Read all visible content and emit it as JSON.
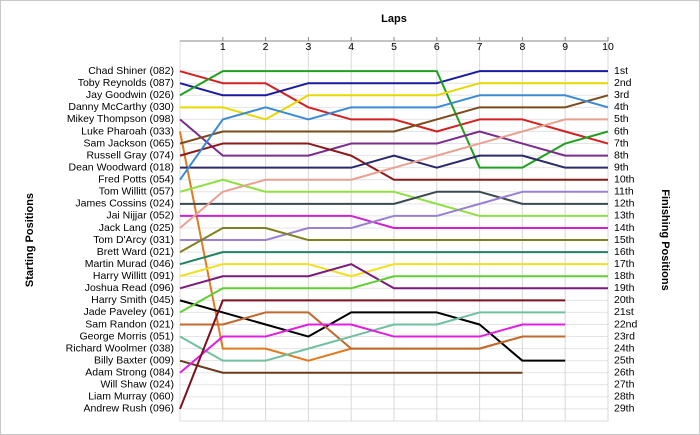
{
  "chart_data": {
    "type": "line",
    "title": "Laps",
    "y_label": "Starting Positions",
    "y2_label": "Finishing Positions",
    "x": [
      0,
      1,
      2,
      3,
      4,
      5,
      6,
      7,
      8,
      9,
      10
    ],
    "xlim": [
      0,
      10
    ],
    "xticks": [
      1,
      2,
      3,
      4,
      5,
      6,
      7,
      8,
      9,
      10
    ],
    "ylim": [
      30,
      -1.5
    ],
    "y2lim": [
      30,
      -1.5
    ],
    "y2ticks": [
      {
        "value": 1,
        "label": "1st"
      },
      {
        "value": 2,
        "label": "2nd"
      },
      {
        "value": 3,
        "label": "3rd"
      },
      {
        "value": 4,
        "label": "4th"
      },
      {
        "value": 5,
        "label": "5th"
      },
      {
        "value": 6,
        "label": "6th"
      },
      {
        "value": 7,
        "label": "7th"
      },
      {
        "value": 8,
        "label": "8th"
      },
      {
        "value": 9,
        "label": "9th"
      },
      {
        "value": 10,
        "label": "10th"
      },
      {
        "value": 11,
        "label": "11th"
      },
      {
        "value": 12,
        "label": "12th"
      },
      {
        "value": 13,
        "label": "13th"
      },
      {
        "value": 14,
        "label": "14th"
      },
      {
        "value": 15,
        "label": "15th"
      },
      {
        "value": 16,
        "label": "16th"
      },
      {
        "value": 17,
        "label": "17th"
      },
      {
        "value": 18,
        "label": "18th"
      },
      {
        "value": 19,
        "label": "19th"
      },
      {
        "value": 20,
        "label": "20th"
      },
      {
        "value": 21,
        "label": "21st"
      },
      {
        "value": 22,
        "label": "22nd"
      },
      {
        "value": 23,
        "label": "23rd"
      },
      {
        "value": 24,
        "label": "24th"
      },
      {
        "value": 25,
        "label": "25th"
      },
      {
        "value": 26,
        "label": "26th"
      },
      {
        "value": 27,
        "label": "27th"
      },
      {
        "value": 28,
        "label": "28th"
      },
      {
        "value": 29,
        "label": "29th"
      }
    ],
    "grid": true,
    "series": [
      {
        "name": "Chad Shiner (082)",
        "color": "#d42020",
        "values": [
          1,
          2,
          2,
          4,
          5,
          5,
          6,
          5,
          5,
          6,
          7
        ]
      },
      {
        "name": "Toby Reynolds (087)",
        "color": "#1a1aa0",
        "values": [
          2,
          3,
          3,
          2,
          2,
          2,
          2,
          1,
          1,
          1,
          1
        ]
      },
      {
        "name": "Jay Goodwin (026)",
        "color": "#20a020",
        "values": [
          3,
          1,
          1,
          1,
          1,
          1,
          1,
          9,
          9,
          7,
          6
        ]
      },
      {
        "name": "Danny McCarthy (030)",
        "color": "#e8d800",
        "values": [
          4,
          4,
          5,
          3,
          3,
          3,
          3,
          2,
          2,
          2,
          2
        ]
      },
      {
        "name": "Mikey Thompson (098)",
        "color": "#7b2d8b",
        "values": [
          5,
          8,
          8,
          8,
          7,
          7,
          7,
          6,
          7,
          8,
          8
        ]
      },
      {
        "name": "Luke Pharoah (033)",
        "color": "#e07a20",
        "values": [
          6,
          24,
          24,
          25,
          24,
          24,
          24,
          24,
          23,
          23,
          null
        ]
      },
      {
        "name": "Sam Jackson (065)",
        "color": "#7a4a1a",
        "values": [
          7,
          6,
          6,
          6,
          6,
          6,
          5,
          4,
          4,
          4,
          3
        ]
      },
      {
        "name": "Russell Gray (074)",
        "color": "#8b1a1a",
        "values": [
          8,
          7,
          7,
          7,
          8,
          10,
          10,
          10,
          10,
          10,
          10
        ]
      },
      {
        "name": "Dean Woodward (018)",
        "color": "#2a2a6a",
        "values": [
          9,
          9,
          9,
          9,
          9,
          8,
          9,
          8,
          8,
          9,
          9
        ]
      },
      {
        "name": "Fred Potts (054)",
        "color": "#3a8ad6",
        "values": [
          10,
          5,
          4,
          5,
          4,
          4,
          4,
          3,
          3,
          3,
          4
        ]
      },
      {
        "name": "Tom Willitt (057)",
        "color": "#90e040",
        "values": [
          11,
          10,
          11,
          11,
          11,
          11,
          12,
          13,
          13,
          13,
          13
        ]
      },
      {
        "name": "James Cossins (024)",
        "color": "#3a4a50",
        "values": [
          12,
          12,
          12,
          12,
          12,
          12,
          11,
          11,
          12,
          12,
          12
        ]
      },
      {
        "name": "Jai Nijjar (052)",
        "color": "#d020d0",
        "values": [
          13,
          13,
          13,
          13,
          13,
          14,
          14,
          14,
          14,
          14,
          14
        ]
      },
      {
        "name": "Jack Lang (025)",
        "color": "#e8a090",
        "values": [
          14,
          11,
          10,
          10,
          10,
          9,
          8,
          7,
          6,
          5,
          5
        ]
      },
      {
        "name": "Tom D'Arcy (031)",
        "color": "#9a80d0",
        "values": [
          15,
          15,
          15,
          14,
          14,
          13,
          13,
          12,
          11,
          11,
          11
        ]
      },
      {
        "name": "Brett Ward (021)",
        "color": "#808020",
        "values": [
          16,
          14,
          14,
          15,
          15,
          15,
          15,
          15,
          15,
          15,
          15
        ]
      },
      {
        "name": "Martin Murad (046)",
        "color": "#208060",
        "values": [
          17,
          16,
          16,
          16,
          16,
          16,
          16,
          16,
          16,
          16,
          16
        ]
      },
      {
        "name": "Harry Willitt (091)",
        "color": "#f0e020",
        "values": [
          18,
          17,
          17,
          17,
          18,
          17,
          17,
          17,
          17,
          17,
          17
        ]
      },
      {
        "name": "Joshua Read (096)",
        "color": "#7a1a7a",
        "values": [
          19,
          18,
          18,
          18,
          17,
          19,
          19,
          19,
          19,
          19,
          19
        ]
      },
      {
        "name": "Harry Smith (045)",
        "color": "#000000",
        "values": [
          20,
          21,
          22,
          23,
          21,
          21,
          21,
          22,
          25,
          25,
          null
        ]
      },
      {
        "name": "Jade Paveley (061)",
        "color": "#60d030",
        "values": [
          21,
          19,
          19,
          19,
          19,
          18,
          18,
          18,
          18,
          18,
          18
        ]
      },
      {
        "name": "Sam Randon (021)",
        "color": "#c06a30",
        "values": [
          22,
          22,
          21,
          21,
          24,
          24,
          24,
          24,
          23,
          23,
          null
        ]
      },
      {
        "name": "George Morris (051)",
        "color": "#70c0a0",
        "values": [
          23,
          25,
          25,
          24,
          23,
          22,
          22,
          21,
          21,
          21,
          null
        ]
      },
      {
        "name": "Richard Woolmer (038)",
        "color": "#a06030",
        "values": [
          24,
          null,
          null,
          null,
          null,
          null,
          null,
          null,
          null,
          null,
          null
        ]
      },
      {
        "name": "Billy Baxter (009)",
        "color": "#6a3a1a",
        "values": [
          25,
          26,
          26,
          26,
          26,
          26,
          26,
          26,
          26,
          null,
          null
        ]
      },
      {
        "name": "Adam Strong (084)",
        "color": "#e020e0",
        "values": [
          26,
          23,
          23,
          22,
          22,
          23,
          23,
          23,
          22,
          22,
          null
        ]
      },
      {
        "name": "Will Shaw (024)",
        "color": "#40a0a0",
        "values": [
          27,
          null,
          null,
          null,
          null,
          null,
          null,
          null,
          null,
          null,
          null
        ]
      },
      {
        "name": "Liam Murray (060)",
        "color": "#a0a0a0",
        "values": [
          28,
          null,
          null,
          null,
          null,
          null,
          null,
          null,
          null,
          null,
          null
        ]
      },
      {
        "name": "Andrew Rush (096)",
        "color": "#7a1020",
        "values": [
          29,
          20,
          20,
          20,
          20,
          20,
          20,
          20,
          20,
          20,
          null
        ]
      }
    ]
  }
}
